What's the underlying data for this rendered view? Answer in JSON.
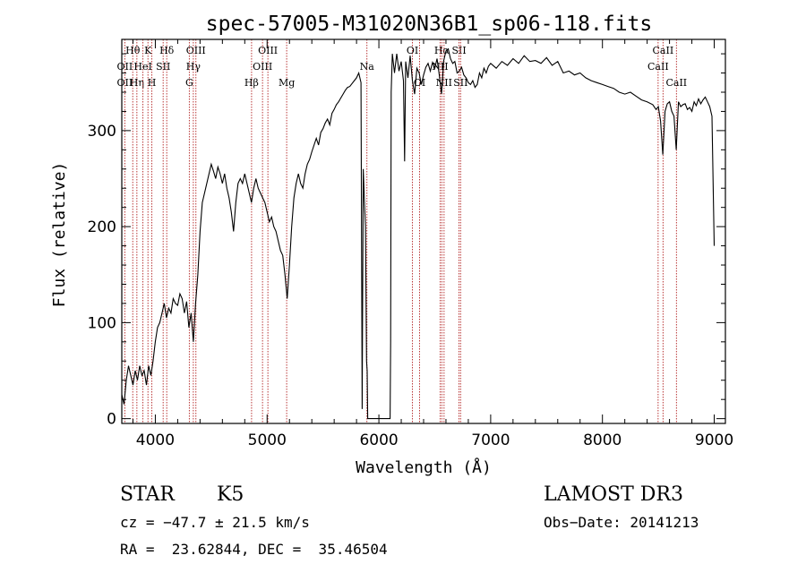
{
  "chart_data": {
    "type": "line",
    "title": "spec-57005-M31020N36B1_sp06-118.fits",
    "xlabel": "Wavelength (Å)",
    "ylabel": "Flux (relative)",
    "xlim": [
      3700,
      9100
    ],
    "ylim": [
      -5,
      395
    ],
    "xticks": [
      4000,
      5000,
      6000,
      7000,
      8000,
      9000
    ],
    "yticks": [
      0,
      100,
      200,
      300
    ],
    "series": [
      {
        "name": "flux",
        "points": [
          [
            3700,
            25
          ],
          [
            3720,
            15
          ],
          [
            3740,
            40
          ],
          [
            3760,
            55
          ],
          [
            3780,
            45
          ],
          [
            3800,
            35
          ],
          [
            3820,
            50
          ],
          [
            3840,
            40
          ],
          [
            3860,
            55
          ],
          [
            3880,
            45
          ],
          [
            3900,
            50
          ],
          [
            3920,
            35
          ],
          [
            3940,
            55
          ],
          [
            3960,
            45
          ],
          [
            3980,
            60
          ],
          [
            4000,
            80
          ],
          [
            4020,
            95
          ],
          [
            4040,
            100
          ],
          [
            4060,
            110
          ],
          [
            4080,
            120
          ],
          [
            4100,
            105
          ],
          [
            4120,
            115
          ],
          [
            4140,
            110
          ],
          [
            4160,
            125
          ],
          [
            4180,
            120
          ],
          [
            4200,
            118
          ],
          [
            4220,
            130
          ],
          [
            4240,
            125
          ],
          [
            4260,
            110
          ],
          [
            4280,
            122
          ],
          [
            4300,
            95
          ],
          [
            4320,
            110
          ],
          [
            4340,
            80
          ],
          [
            4360,
            120
          ],
          [
            4380,
            150
          ],
          [
            4400,
            195
          ],
          [
            4420,
            225
          ],
          [
            4440,
            235
          ],
          [
            4460,
            245
          ],
          [
            4480,
            255
          ],
          [
            4500,
            265
          ],
          [
            4520,
            258
          ],
          [
            4540,
            250
          ],
          [
            4560,
            262
          ],
          [
            4580,
            255
          ],
          [
            4600,
            245
          ],
          [
            4620,
            255
          ],
          [
            4640,
            240
          ],
          [
            4660,
            230
          ],
          [
            4680,
            215
          ],
          [
            4700,
            195
          ],
          [
            4720,
            225
          ],
          [
            4740,
            245
          ],
          [
            4760,
            250
          ],
          [
            4780,
            245
          ],
          [
            4800,
            255
          ],
          [
            4820,
            245
          ],
          [
            4840,
            235
          ],
          [
            4860,
            225
          ],
          [
            4880,
            240
          ],
          [
            4900,
            250
          ],
          [
            4920,
            240
          ],
          [
            4940,
            235
          ],
          [
            4960,
            230
          ],
          [
            4980,
            225
          ],
          [
            5000,
            215
          ],
          [
            5020,
            205
          ],
          [
            5040,
            210
          ],
          [
            5060,
            200
          ],
          [
            5080,
            195
          ],
          [
            5100,
            185
          ],
          [
            5120,
            175
          ],
          [
            5140,
            170
          ],
          [
            5160,
            150
          ],
          [
            5180,
            125
          ],
          [
            5200,
            160
          ],
          [
            5220,
            200
          ],
          [
            5240,
            230
          ],
          [
            5260,
            245
          ],
          [
            5280,
            255
          ],
          [
            5300,
            245
          ],
          [
            5320,
            240
          ],
          [
            5340,
            255
          ],
          [
            5360,
            265
          ],
          [
            5380,
            270
          ],
          [
            5400,
            278
          ],
          [
            5420,
            285
          ],
          [
            5440,
            292
          ],
          [
            5460,
            285
          ],
          [
            5480,
            298
          ],
          [
            5500,
            302
          ],
          [
            5520,
            308
          ],
          [
            5540,
            312
          ],
          [
            5560,
            306
          ],
          [
            5580,
            318
          ],
          [
            5600,
            322
          ],
          [
            5620,
            327
          ],
          [
            5640,
            330
          ],
          [
            5660,
            334
          ],
          [
            5680,
            338
          ],
          [
            5700,
            342
          ],
          [
            5720,
            345
          ],
          [
            5740,
            346
          ],
          [
            5760,
            349
          ],
          [
            5780,
            352
          ],
          [
            5800,
            355
          ],
          [
            5820,
            360
          ],
          [
            5840,
            350
          ],
          [
            5850,
            10
          ],
          [
            5860,
            260
          ],
          [
            5870,
            230
          ],
          [
            5880,
            200
          ],
          [
            5890,
            60
          ],
          [
            5895,
            50
          ],
          [
            5900,
            0
          ],
          [
            5920,
            0
          ],
          [
            6000,
            0
          ],
          [
            6080,
            0
          ],
          [
            6100,
            0
          ],
          [
            6105,
            80
          ],
          [
            6110,
            340
          ],
          [
            6120,
            380
          ],
          [
            6140,
            360
          ],
          [
            6160,
            380
          ],
          [
            6180,
            362
          ],
          [
            6200,
            372
          ],
          [
            6220,
            352
          ],
          [
            6230,
            268
          ],
          [
            6240,
            372
          ],
          [
            6260,
            355
          ],
          [
            6280,
            378
          ],
          [
            6300,
            352
          ],
          [
            6320,
            338
          ],
          [
            6340,
            365
          ],
          [
            6360,
            360
          ],
          [
            6380,
            348
          ],
          [
            6400,
            358
          ],
          [
            6420,
            366
          ],
          [
            6440,
            370
          ],
          [
            6460,
            362
          ],
          [
            6480,
            371
          ],
          [
            6500,
            365
          ],
          [
            6520,
            375
          ],
          [
            6540,
            358
          ],
          [
            6560,
            338
          ],
          [
            6580,
            373
          ],
          [
            6600,
            383
          ],
          [
            6620,
            385
          ],
          [
            6640,
            375
          ],
          [
            6660,
            370
          ],
          [
            6680,
            372
          ],
          [
            6700,
            360
          ],
          [
            6720,
            362
          ],
          [
            6740,
            366
          ],
          [
            6760,
            358
          ],
          [
            6780,
            355
          ],
          [
            6800,
            350
          ],
          [
            6820,
            348
          ],
          [
            6840,
            352
          ],
          [
            6860,
            345
          ],
          [
            6880,
            348
          ],
          [
            6900,
            360
          ],
          [
            6920,
            355
          ],
          [
            6940,
            365
          ],
          [
            6960,
            360
          ],
          [
            6980,
            367
          ],
          [
            7000,
            370
          ],
          [
            7050,
            365
          ],
          [
            7100,
            372
          ],
          [
            7150,
            368
          ],
          [
            7200,
            375
          ],
          [
            7250,
            370
          ],
          [
            7300,
            378
          ],
          [
            7350,
            372
          ],
          [
            7400,
            373
          ],
          [
            7450,
            370
          ],
          [
            7500,
            376
          ],
          [
            7550,
            368
          ],
          [
            7600,
            372
          ],
          [
            7650,
            360
          ],
          [
            7700,
            362
          ],
          [
            7750,
            358
          ],
          [
            7800,
            360
          ],
          [
            7850,
            355
          ],
          [
            7900,
            352
          ],
          [
            7950,
            350
          ],
          [
            8000,
            348
          ],
          [
            8050,
            346
          ],
          [
            8100,
            344
          ],
          [
            8150,
            340
          ],
          [
            8200,
            338
          ],
          [
            8250,
            340
          ],
          [
            8300,
            336
          ],
          [
            8350,
            332
          ],
          [
            8400,
            330
          ],
          [
            8450,
            327
          ],
          [
            8480,
            322
          ],
          [
            8500,
            325
          ],
          [
            8520,
            310
          ],
          [
            8540,
            275
          ],
          [
            8560,
            320
          ],
          [
            8580,
            328
          ],
          [
            8600,
            330
          ],
          [
            8620,
            320
          ],
          [
            8640,
            315
          ],
          [
            8660,
            280
          ],
          [
            8680,
            330
          ],
          [
            8700,
            325
          ],
          [
            8720,
            327
          ],
          [
            8740,
            328
          ],
          [
            8760,
            322
          ],
          [
            8780,
            324
          ],
          [
            8800,
            320
          ],
          [
            8820,
            330
          ],
          [
            8840,
            326
          ],
          [
            8860,
            333
          ],
          [
            8880,
            328
          ],
          [
            8900,
            332
          ],
          [
            8920,
            335
          ],
          [
            8940,
            330
          ],
          [
            8960,
            325
          ],
          [
            8980,
            315
          ],
          [
            9000,
            180
          ]
        ]
      }
    ],
    "spectral_lines": [
      {
        "name": "Hθ",
        "wl": 3798,
        "row": 0
      },
      {
        "name": "OII",
        "wl": 3727,
        "row": 1
      },
      {
        "name": "OII",
        "wl": 3727,
        "row": 2
      },
      {
        "name": "Hη",
        "wl": 3835,
        "row": 2
      },
      {
        "name": "K",
        "wl": 3934,
        "row": 0
      },
      {
        "name": "HeI",
        "wl": 3889,
        "row": 1
      },
      {
        "name": "SII",
        "wl": 4070,
        "row": 1
      },
      {
        "name": "H",
        "wl": 3969,
        "row": 2
      },
      {
        "name": "Hδ",
        "wl": 4102,
        "row": 0
      },
      {
        "name": "OIII",
        "wl": 4363,
        "row": 0
      },
      {
        "name": "Hγ",
        "wl": 4340,
        "row": 1
      },
      {
        "name": "G",
        "wl": 4304,
        "row": 2
      },
      {
        "name": "Hβ",
        "wl": 4861,
        "row": 2
      },
      {
        "name": "OIII",
        "wl": 5007,
        "row": 0
      },
      {
        "name": "OIII",
        "wl": 4959,
        "row": 1
      },
      {
        "name": "Mg",
        "wl": 5175,
        "row": 2
      },
      {
        "name": "Na",
        "wl": 5893,
        "row": 1
      },
      {
        "name": "OI",
        "wl": 6300,
        "row": 0
      },
      {
        "name": "OI",
        "wl": 6364,
        "row": 2
      },
      {
        "name": "Hα",
        "wl": 6563,
        "row": 0
      },
      {
        "name": "NII",
        "wl": 6548,
        "row": 1
      },
      {
        "name": "NII",
        "wl": 6583,
        "row": 2
      },
      {
        "name": "SII",
        "wl": 6717,
        "row": 0
      },
      {
        "name": "SII",
        "wl": 6731,
        "row": 2
      },
      {
        "name": "CaII",
        "wl": 8542,
        "row": 0
      },
      {
        "name": "CaII",
        "wl": 8498,
        "row": 1
      },
      {
        "name": "CaII",
        "wl": 8662,
        "row": 2
      }
    ],
    "colors": {
      "line": "#000000",
      "spectral": "#b22222",
      "axes": "#000000"
    }
  },
  "info": {
    "class": "STAR",
    "subclass": "K5",
    "survey": "LAMOST DR3",
    "cz": "cz = −47.7 ± 21.5 km/s",
    "obsdate": "Obs−Date: 20141213",
    "coords": "RA =  23.62844, DEC =  35.46504"
  }
}
